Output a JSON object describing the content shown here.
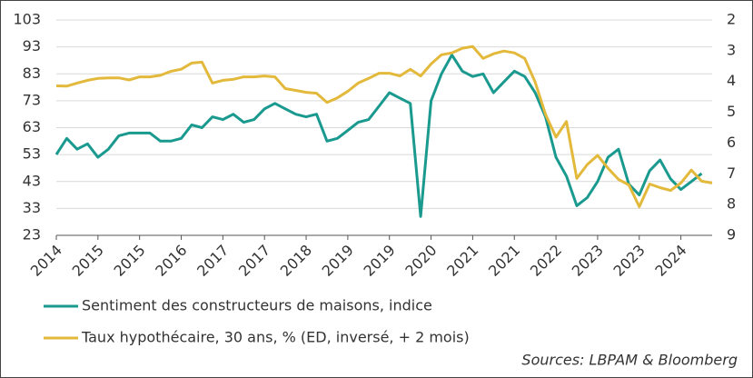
{
  "chart_data": {
    "type": "line",
    "categories": [
      "2014",
      null,
      null,
      null,
      "2015",
      null,
      null,
      null,
      "2015",
      null,
      null,
      null,
      "2016",
      null,
      null,
      null,
      "2017",
      null,
      null,
      null,
      "2017",
      null,
      null,
      null,
      "2018",
      null,
      null,
      null,
      "2019",
      null,
      null,
      null,
      "2019",
      null,
      null,
      null,
      "2020",
      null,
      null,
      null,
      "2021",
      null,
      null,
      null,
      "2021",
      null,
      null,
      null,
      "2022",
      null,
      null,
      null,
      "2023",
      null,
      null,
      null,
      "2023",
      null,
      null,
      null,
      "2024",
      null,
      null,
      null
    ],
    "series": [
      {
        "name": "Sentiment des constructeurs de maisons, indice",
        "color": "#1a9a8f",
        "axis": "y",
        "values": [
          53,
          59,
          55,
          57,
          52,
          55,
          60,
          61,
          61,
          61,
          58,
          58,
          59,
          64,
          63,
          67,
          66,
          68,
          65,
          66,
          70,
          72,
          70,
          68,
          67,
          68,
          58,
          59,
          62,
          65,
          66,
          71,
          76,
          74,
          72,
          30,
          73,
          83,
          90,
          84,
          82,
          83,
          76,
          80,
          84,
          82,
          76,
          67,
          52,
          45,
          34,
          37,
          43,
          52,
          55,
          42,
          38,
          47,
          51,
          44,
          40,
          43,
          46,
          null
        ]
      },
      {
        "name": "Taux hypothécaire, 30 ans, % (ED, inversé, + 2 mois)",
        "color": "#e3b93c",
        "axis": "y2",
        "values": [
          4.14,
          4.15,
          4.05,
          3.96,
          3.9,
          3.88,
          3.88,
          3.95,
          3.85,
          3.85,
          3.8,
          3.67,
          3.6,
          3.4,
          3.37,
          4.05,
          3.96,
          3.93,
          3.85,
          3.85,
          3.82,
          3.85,
          4.23,
          4.29,
          4.35,
          4.38,
          4.68,
          4.53,
          4.32,
          4.05,
          3.9,
          3.73,
          3.73,
          3.82,
          3.6,
          3.82,
          3.43,
          3.13,
          3.07,
          2.92,
          2.86,
          3.25,
          3.1,
          3.01,
          3.07,
          3.25,
          4.02,
          5.07,
          5.81,
          5.3,
          7.15,
          6.7,
          6.4,
          6.82,
          7.18,
          7.36,
          8.07,
          7.33,
          7.45,
          7.54,
          7.3,
          6.88,
          7.24,
          7.3
        ]
      }
    ],
    "ylim": [
      23,
      103
    ],
    "yticks": [
      23,
      33,
      43,
      53,
      63,
      73,
      83,
      93,
      103
    ],
    "y2lim": [
      2,
      9
    ],
    "y2ticks": [
      2,
      3,
      4,
      5,
      6,
      7,
      8,
      9
    ],
    "y2_inverted": true,
    "grid": true,
    "source": "Sources: LBPAM & Bloomberg"
  }
}
